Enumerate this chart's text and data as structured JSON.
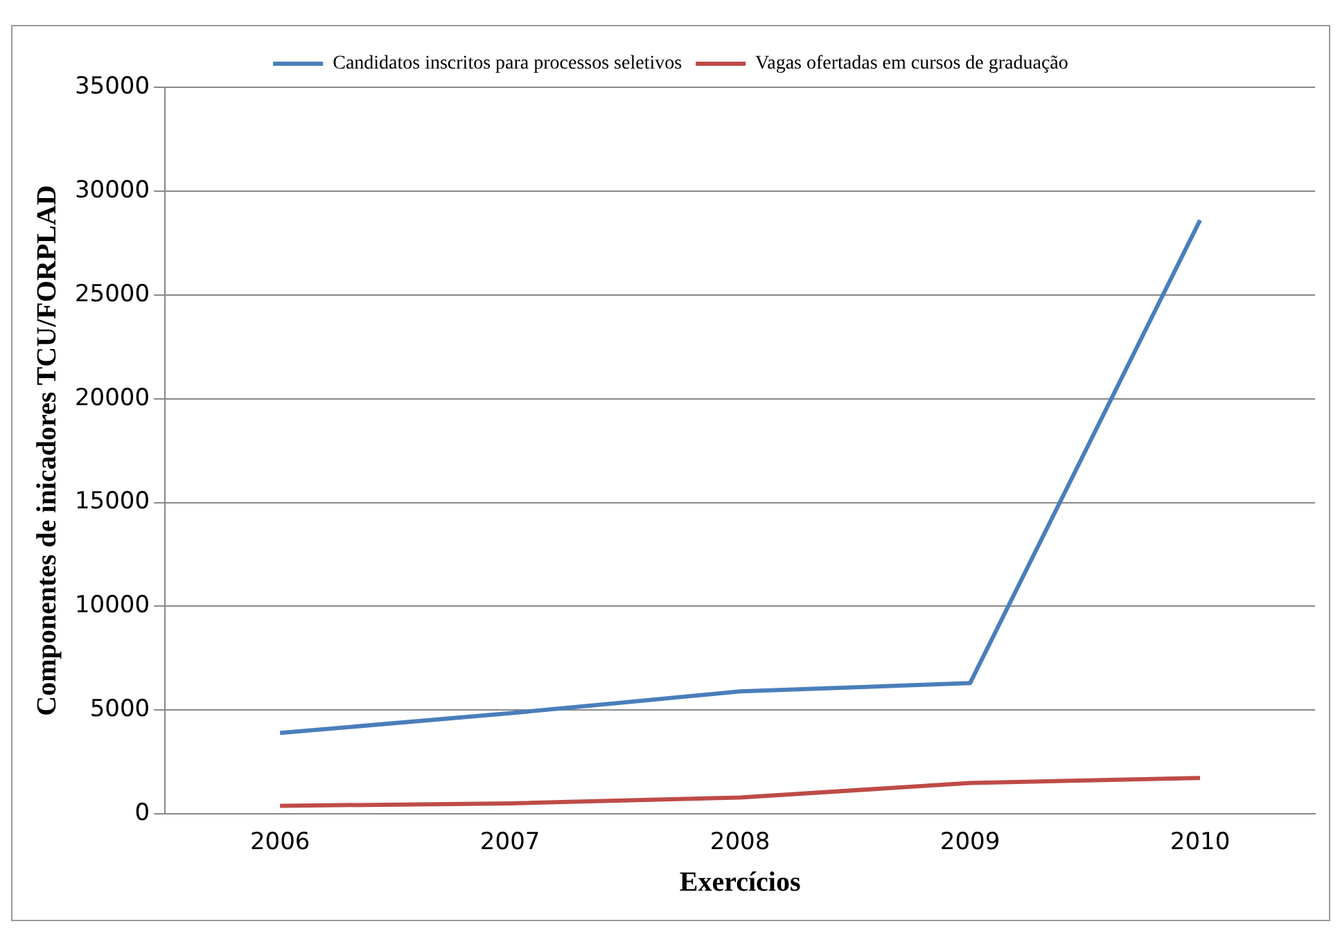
{
  "chart_data": {
    "type": "line",
    "xlabel": "Exercícios",
    "ylabel": "Componentes de inicadores TCU/FORPLAD",
    "categories": [
      "2006",
      "2007",
      "2008",
      "2009",
      "2010"
    ],
    "series": [
      {
        "name": "Candidatos inscritos para processos seletivos",
        "color": "#4a7ebb",
        "values": [
          3900,
          4850,
          5900,
          6300,
          28600
        ]
      },
      {
        "name": "Vagas ofertadas em cursos de graduação",
        "color": "#be4b48",
        "values": [
          390,
          510,
          790,
          1490,
          1730
        ]
      }
    ],
    "ylim": [
      0,
      35000
    ],
    "yticks": [
      0,
      5000,
      10000,
      15000,
      20000,
      25000,
      30000,
      35000
    ],
    "grid": "y",
    "legend": "top",
    "marker": "none",
    "line_style": "solid"
  }
}
